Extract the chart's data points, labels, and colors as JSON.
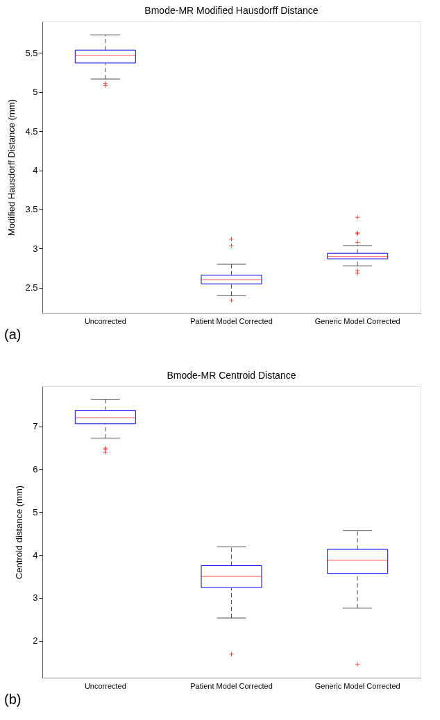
{
  "chart_data": [
    {
      "type": "box",
      "title": "Bmode-MR Modified Hausdorff Distance",
      "ylabel": "Modified Hausdorff Distance (mm)",
      "categories": [
        "Uncorrected",
        "Patient Model Corrected",
        "Generic Model Corrected"
      ],
      "series": [
        {
          "color": "#0000ff",
          "boxes": [
            {
              "low": 5.165,
              "q1": 5.37,
              "median": 5.47,
              "q3": 5.535,
              "high": 5.73,
              "outliers": [
                5.11,
                5.08
              ]
            },
            {
              "low": 2.4,
              "q1": 2.55,
              "median": 2.6,
              "q3": 2.66,
              "high": 2.8,
              "outliers": [
                2.34,
                3.12,
                3.035
              ]
            },
            {
              "low": 2.78,
              "q1": 2.87,
              "median": 2.9,
              "q3": 2.94,
              "high": 3.04,
              "outliers": [
                3.4,
                3.2,
                3.19,
                3.08,
                2.72,
                2.685
              ]
            }
          ]
        }
      ],
      "ylim": [
        2.18,
        5.9
      ],
      "yticks": [
        2.5,
        3,
        3.5,
        4,
        4.5,
        5,
        5.5
      ],
      "grid": false,
      "annotations": [
        "(a)"
      ]
    },
    {
      "type": "box",
      "title": "Bmode-MR Centroid Distance",
      "ylabel": "Centroid distance (mm)",
      "categories": [
        "Uncorrected",
        "Patient Model Corrected",
        "Generic Model Corrected"
      ],
      "series": [
        {
          "color": "#0000ff",
          "boxes": [
            {
              "low": 6.72,
              "q1": 7.06,
              "median": 7.2,
              "q3": 7.37,
              "high": 7.63,
              "outliers": [
                6.49,
                6.46,
                6.39
              ]
            },
            {
              "low": 2.53,
              "q1": 3.24,
              "median": 3.5,
              "q3": 3.75,
              "high": 4.19,
              "outliers": [
                1.69
              ]
            },
            {
              "low": 2.76,
              "q1": 3.57,
              "median": 3.88,
              "q3": 4.13,
              "high": 4.57,
              "outliers": [
                1.45
              ]
            }
          ]
        }
      ],
      "ylim": [
        1.14,
        7.93
      ],
      "yticks": [
        2,
        3,
        4,
        5,
        6,
        7
      ],
      "grid": false,
      "annotations": [
        "(b)"
      ]
    }
  ]
}
